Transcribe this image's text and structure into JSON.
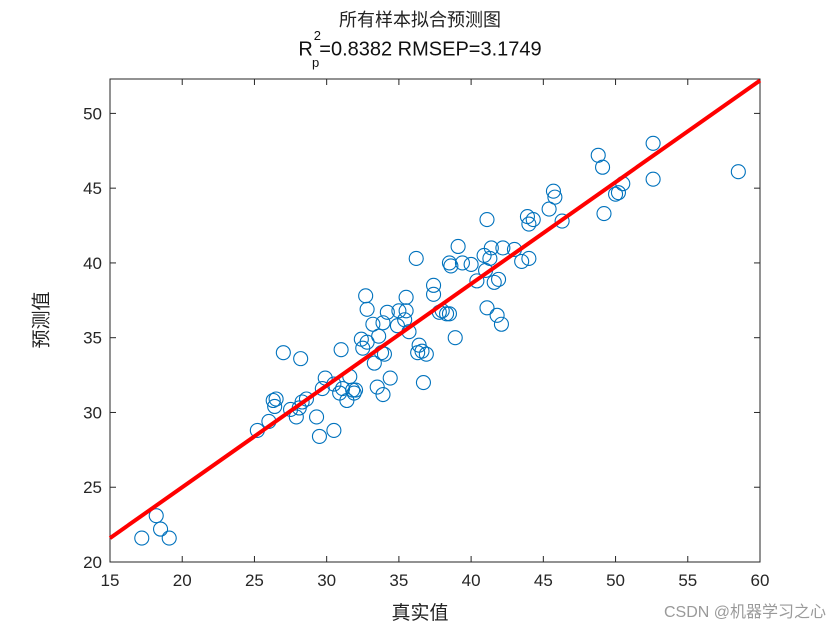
{
  "title": "所有样本拟合预测图",
  "subtitle": {
    "r": "R",
    "sup": "2",
    "sub": "p",
    "rest": "=0.8382  RMSEP=3.1749"
  },
  "watermark": "CSDN @机器学习之心",
  "chart_data": {
    "type": "scatter",
    "title": "所有样本拟合预测图",
    "subtitle": "R2p=0.8382  RMSEP=3.1749",
    "xlabel": "真实值",
    "ylabel": "预测值",
    "xlim": [
      15,
      60
    ],
    "ylim": [
      20,
      52.3
    ],
    "xticks": [
      15,
      20,
      25,
      30,
      35,
      40,
      45,
      50,
      55,
      60
    ],
    "yticks": [
      20,
      25,
      30,
      35,
      40,
      45,
      50
    ],
    "grid": false,
    "marker_color": "#0072BD",
    "line_color": "#FF0000",
    "fit_line": {
      "x": [
        15,
        60
      ],
      "y": [
        21.6,
        52.2
      ]
    },
    "points": [
      [
        17.2,
        21.6
      ],
      [
        18.2,
        23.1
      ],
      [
        18.5,
        22.2
      ],
      [
        19.1,
        21.6
      ],
      [
        25.2,
        28.8
      ],
      [
        26.0,
        29.4
      ],
      [
        26.3,
        30.8
      ],
      [
        26.4,
        30.4
      ],
      [
        26.5,
        30.9
      ],
      [
        27.0,
        34.0
      ],
      [
        27.5,
        30.2
      ],
      [
        27.9,
        29.7
      ],
      [
        28.1,
        30.3
      ],
      [
        28.3,
        30.7
      ],
      [
        28.2,
        33.6
      ],
      [
        28.6,
        30.9
      ],
      [
        29.3,
        29.7
      ],
      [
        29.5,
        28.4
      ],
      [
        29.7,
        31.6
      ],
      [
        29.9,
        32.3
      ],
      [
        30.5,
        28.8
      ],
      [
        30.5,
        31.9
      ],
      [
        30.9,
        31.3
      ],
      [
        31.0,
        34.2
      ],
      [
        31.1,
        31.6
      ],
      [
        31.4,
        30.8
      ],
      [
        31.6,
        32.4
      ],
      [
        31.8,
        31.5
      ],
      [
        31.9,
        31.3
      ],
      [
        32.0,
        31.5
      ],
      [
        32.4,
        34.9
      ],
      [
        32.5,
        34.3
      ],
      [
        32.7,
        37.8
      ],
      [
        32.8,
        34.7
      ],
      [
        32.8,
        36.9
      ],
      [
        33.2,
        35.9
      ],
      [
        33.3,
        33.3
      ],
      [
        33.5,
        31.7
      ],
      [
        33.6,
        35.1
      ],
      [
        33.8,
        34.0
      ],
      [
        33.9,
        31.2
      ],
      [
        33.9,
        36.0
      ],
      [
        34.0,
        33.9
      ],
      [
        34.2,
        36.7
      ],
      [
        34.4,
        32.3
      ],
      [
        34.9,
        35.8
      ],
      [
        35.0,
        36.8
      ],
      [
        35.5,
        36.8
      ],
      [
        35.5,
        37.7
      ],
      [
        35.4,
        36.2
      ],
      [
        35.7,
        35.4
      ],
      [
        36.2,
        40.3
      ],
      [
        36.3,
        34.0
      ],
      [
        36.4,
        34.5
      ],
      [
        36.6,
        34.1
      ],
      [
        36.7,
        32.0
      ],
      [
        36.9,
        33.9
      ],
      [
        37.4,
        38.5
      ],
      [
        37.4,
        37.9
      ],
      [
        37.8,
        36.7
      ],
      [
        38.0,
        36.8
      ],
      [
        38.3,
        36.6
      ],
      [
        38.5,
        36.6
      ],
      [
        38.5,
        40.0
      ],
      [
        38.6,
        39.8
      ],
      [
        38.9,
        35.0
      ],
      [
        39.1,
        41.1
      ],
      [
        39.4,
        40.0
      ],
      [
        40.0,
        39.9
      ],
      [
        40.4,
        38.8
      ],
      [
        40.9,
        40.5
      ],
      [
        41.0,
        39.5
      ],
      [
        41.1,
        42.9
      ],
      [
        41.1,
        37.0
      ],
      [
        41.3,
        40.3
      ],
      [
        41.4,
        41.0
      ],
      [
        41.6,
        38.7
      ],
      [
        41.8,
        36.5
      ],
      [
        41.9,
        38.9
      ],
      [
        42.1,
        35.9
      ],
      [
        42.2,
        41.0
      ],
      [
        43.0,
        40.9
      ],
      [
        43.5,
        40.1
      ],
      [
        43.9,
        43.1
      ],
      [
        44.0,
        42.6
      ],
      [
        44.0,
        40.3
      ],
      [
        44.3,
        42.9
      ],
      [
        45.4,
        43.6
      ],
      [
        45.7,
        44.8
      ],
      [
        45.8,
        44.4
      ],
      [
        46.3,
        42.8
      ],
      [
        48.8,
        47.2
      ],
      [
        49.1,
        46.4
      ],
      [
        49.2,
        43.3
      ],
      [
        50.0,
        44.6
      ],
      [
        50.2,
        44.7
      ],
      [
        50.5,
        45.3
      ],
      [
        52.6,
        48.0
      ],
      [
        52.6,
        45.6
      ],
      [
        58.5,
        46.1
      ]
    ]
  }
}
